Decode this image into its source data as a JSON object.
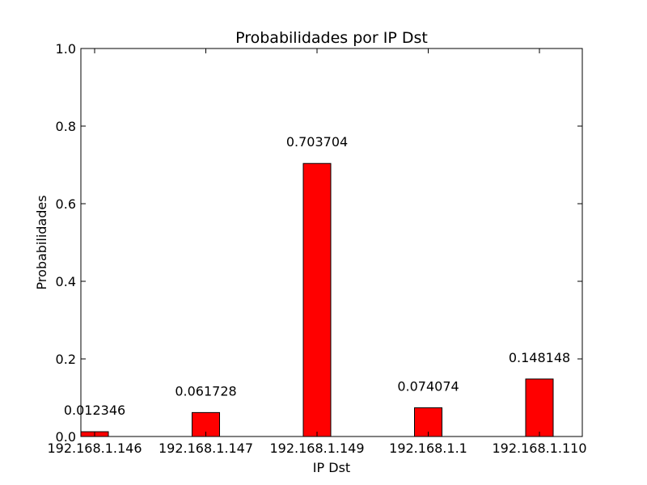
{
  "chart_data": {
    "type": "bar",
    "title": "Probabilidades por IP Dst",
    "xlabel": "IP Dst",
    "ylabel": "Probabilidades",
    "categories": [
      "192.168.1.146",
      "192.168.1.147",
      "192.168.1.149",
      "192.168.1.1",
      "192.168.1.110"
    ],
    "values": [
      0.012346,
      0.061728,
      0.703704,
      0.074074,
      0.148148
    ],
    "data_labels": [
      "0.012346",
      "0.061728",
      "0.703704",
      "0.074074",
      "0.148148"
    ],
    "ylim": [
      0,
      1.0
    ],
    "yticks": [
      "0.0",
      "0.2",
      "0.4",
      "0.6",
      "0.8",
      "1.0"
    ],
    "bar_color": "#ff0000",
    "bar_edge_color": "#000000",
    "grid": false
  }
}
